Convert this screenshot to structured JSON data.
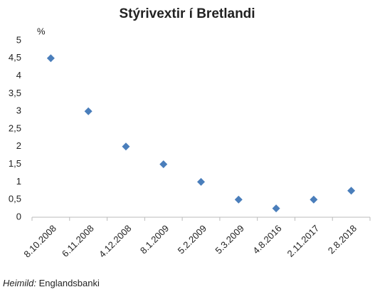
{
  "chart_data": {
    "type": "scatter",
    "title": "Stýrivextir í Bretlandi",
    "y_label": "%",
    "categories": [
      "8.10.2008",
      "6.11.2008",
      "4.12.2008",
      "8.1.2009",
      "5.2.2009",
      "5.3.2009",
      "4.8.2016",
      "2.11.2017",
      "2.8.2018"
    ],
    "values": [
      4.5,
      3,
      2,
      1.5,
      1,
      0.5,
      0.25,
      0.5,
      0.75
    ],
    "color": "#4a7ebb",
    "ylim": [
      0,
      5
    ],
    "yticks": [
      0,
      {
        "value": 0.5,
        "label": "0,5"
      },
      1,
      {
        "value": 1.5,
        "label": "1,5"
      },
      2,
      {
        "value": 2.5,
        "label": "2,5"
      },
      3,
      {
        "value": 3.5,
        "label": "3,5"
      },
      4,
      {
        "value": 4.5,
        "label": "4,5"
      },
      5
    ],
    "grid": false,
    "source_label": "Heimild:",
    "source": "Englandsbanki"
  }
}
